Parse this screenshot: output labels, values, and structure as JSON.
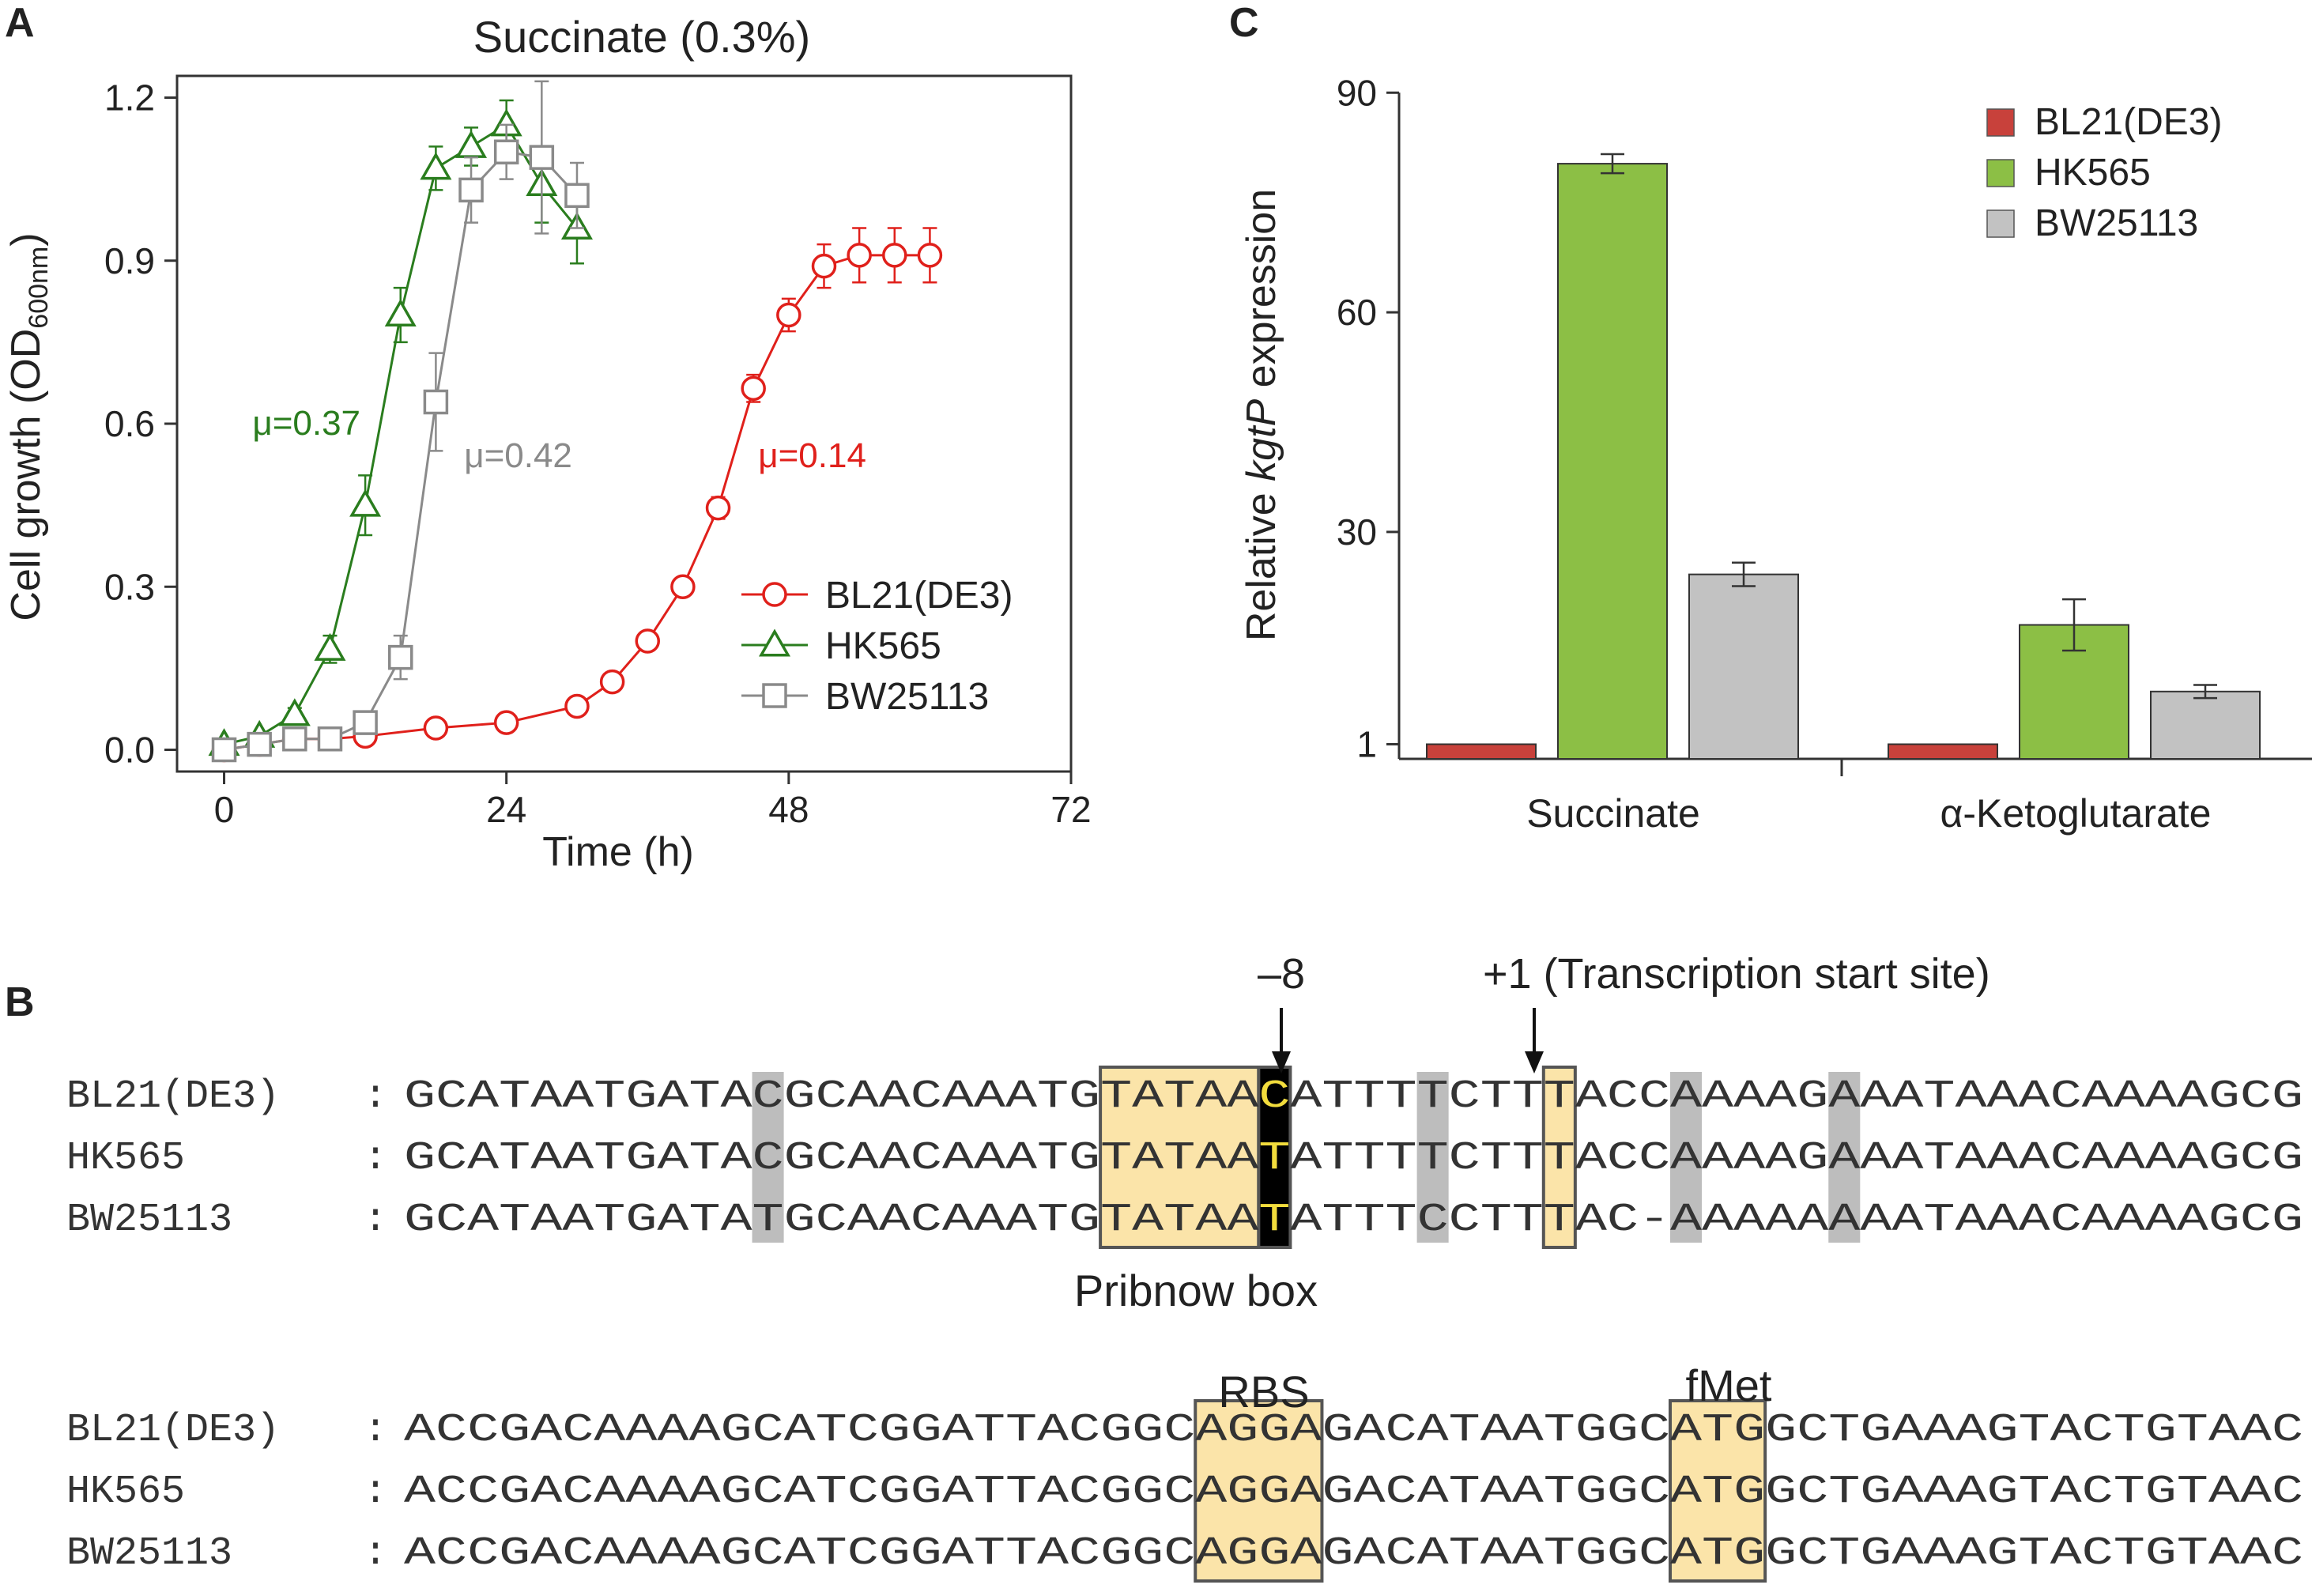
{
  "panel_letters": {
    "a": "A",
    "b": "B",
    "c": "C"
  },
  "chart_data": [
    {
      "panel": "A",
      "type": "line",
      "title": "Succinate (0.3%)",
      "xlabel": "Time (h)",
      "ylabel": "Cell growth (OD",
      "ylabel_sub": "600nm",
      "ylabel_end": ")",
      "xlim": [
        -4,
        72
      ],
      "ylim": [
        -0.04,
        1.24
      ],
      "xticks": [
        "0",
        "24",
        "48",
        "72"
      ],
      "xtick_values": [
        0,
        24,
        48,
        72
      ],
      "yticks": [
        "0.0",
        "0.3",
        "0.6",
        "0.9",
        "1.2"
      ],
      "ytick_values": [
        0,
        0.3,
        0.6,
        0.9,
        1.2
      ],
      "legend_position": "bottom-right",
      "series": [
        {
          "name": "BL21(DE3)",
          "color": "#e0201b",
          "marker": "circle",
          "x": [
            0,
            3,
            6,
            9,
            12,
            18,
            24,
            30,
            33,
            36,
            39,
            42,
            45,
            48,
            51,
            54,
            57,
            60
          ],
          "y": [
            0.0,
            0.01,
            0.02,
            0.02,
            0.025,
            0.04,
            0.05,
            0.08,
            0.125,
            0.2,
            0.3,
            0.445,
            0.665,
            0.8,
            0.89,
            0.91,
            0.91,
            0.91
          ],
          "err": [
            0.005,
            0.005,
            0.005,
            0.005,
            0.005,
            0.005,
            0.005,
            0.01,
            0.012,
            0.015,
            0.015,
            0.02,
            0.025,
            0.03,
            0.04,
            0.05,
            0.05,
            0.05
          ]
        },
        {
          "name": "HK565",
          "color": "#2a7d1e",
          "marker": "triangle",
          "x": [
            0,
            3,
            6,
            9,
            12,
            15,
            18,
            21,
            24,
            27,
            30
          ],
          "y": [
            0.01,
            0.025,
            0.065,
            0.185,
            0.45,
            0.8,
            1.07,
            1.11,
            1.15,
            1.04,
            0.96
          ],
          "err": [
            0.005,
            0.008,
            0.012,
            0.025,
            0.055,
            0.05,
            0.04,
            0.035,
            0.045,
            0.07,
            0.065
          ]
        },
        {
          "name": "BW25113",
          "color": "#8a8a8a",
          "marker": "square",
          "x": [
            0,
            3,
            6,
            9,
            12,
            15,
            18,
            21,
            24,
            27,
            30
          ],
          "y": [
            0.0,
            0.01,
            0.02,
            0.02,
            0.05,
            0.17,
            0.64,
            1.03,
            1.1,
            1.09,
            1.02
          ],
          "err": [
            0.005,
            0.005,
            0.005,
            0.005,
            0.02,
            0.04,
            0.09,
            0.06,
            0.05,
            0.14,
            0.06
          ]
        }
      ],
      "annotations": [
        {
          "text": "μ=0.37",
          "color": "#2a7d1e",
          "x": 7,
          "y": 0.58
        },
        {
          "text": "μ=0.42",
          "color": "#8a8a8a",
          "x": 25,
          "y": 0.52
        },
        {
          "text": "μ=0.14",
          "color": "#e0201b",
          "x": 50,
          "y": 0.52
        }
      ]
    },
    {
      "panel": "C",
      "type": "bar",
      "ylabel_prefix": "Relative ",
      "ylabel_italic": "kgtP",
      "ylabel_suffix": " expression",
      "categories": [
        "Succinate",
        "α-Ketoglutarate"
      ],
      "ylim": [
        -1,
        91
      ],
      "yticks": [
        "1",
        "30",
        "60",
        "90"
      ],
      "ytick_values": [
        1,
        30,
        60,
        90
      ],
      "legend_position": "top-right",
      "series": [
        {
          "name": "BL21(DE3)",
          "color": "#c8413b",
          "values": [
            1.0,
            1.0
          ],
          "err": [
            0,
            0
          ]
        },
        {
          "name": "HK565",
          "color": "#8cbf45",
          "values": [
            80.3,
            17.3
          ],
          "err": [
            1.3,
            3.5
          ]
        },
        {
          "name": "BW25113",
          "color": "#c2c2c2",
          "values": [
            24.2,
            8.2
          ],
          "err": [
            1.6,
            0.9
          ]
        }
      ]
    }
  ],
  "panel_b": {
    "minus8_label": "–8",
    "tss_label": "+1 (Transcription start site)",
    "pribnow_label": "Pribnow box",
    "rbs_label": "RBS",
    "fmet_label": "fMet",
    "separator": ":",
    "block1": [
      {
        "strain": "BL21(DE3)",
        "seq": "GCATAATGATACGCAACAAATGTATAACATTTTCTTTACCAAAAGAAATAAACAAAAGCG"
      },
      {
        "strain": "HK565",
        "seq": "GCATAATGATACGCAACAAATGTATAATATTTTCTTTACCAAAAGAAATAAACAAAAGCG"
      },
      {
        "strain": "BW25113",
        "seq": "GCATAATGATATGCAACAAATGTATAATATTTCCTTTAC-AAAAAAAATAAACAAAAGCG"
      }
    ],
    "block2": [
      {
        "strain": "BL21(DE3)",
        "seq": "ACCGACAAAAGCATCGGATTACGGCAGGAGACATAATGGCATGGCTGAAAGTACTGTAAC"
      },
      {
        "strain": "HK565",
        "seq": "ACCGACAAAAGCATCGGATTACGGCAGGAGACATAATGGCATGGCTGAAAGTACTGTAAC"
      },
      {
        "strain": "BW25113",
        "seq": "ACCGACAAAAGCATCGGATTACGGCAGGAGACATAATGGCATGGCTGAAAGTACTGTAAC"
      }
    ],
    "colors": {
      "box_fill": "#fbe4a9",
      "box_stroke": "#555555",
      "gray_fill": "#bdbdbd",
      "black_fill": "#000000",
      "black_text": "#f2dc3c"
    }
  }
}
